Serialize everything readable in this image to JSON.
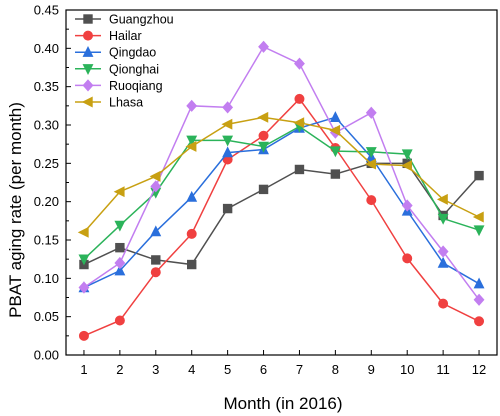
{
  "chart_data": {
    "type": "line",
    "xlabel": "Month (in 2016)",
    "ylabel": "PBAT aging rate (per month)",
    "x": [
      1,
      2,
      3,
      4,
      5,
      6,
      7,
      8,
      9,
      10,
      11,
      12
    ],
    "xlim": [
      0.5,
      12.5
    ],
    "ylim": [
      0.0,
      0.45
    ],
    "xticks": [
      "1",
      "2",
      "3",
      "4",
      "5",
      "6",
      "7",
      "8",
      "9",
      "10",
      "11",
      "12"
    ],
    "yticks": [
      "0.00",
      "0.05",
      "0.10",
      "0.15",
      "0.20",
      "0.25",
      "0.30",
      "0.35",
      "0.40",
      "0.45"
    ],
    "grid": false,
    "legend_position": "top-left",
    "series": [
      {
        "name": "Guangzhou",
        "color": "#505050",
        "marker": "square",
        "values": [
          0.118,
          0.14,
          0.124,
          0.118,
          0.191,
          0.216,
          0.242,
          0.236,
          0.25,
          0.25,
          0.182,
          0.234
        ]
      },
      {
        "name": "Hailar",
        "color": "#f04040",
        "marker": "circle",
        "values": [
          0.025,
          0.045,
          0.108,
          0.158,
          0.255,
          0.286,
          0.334,
          0.27,
          0.202,
          0.126,
          0.067,
          0.044
        ]
      },
      {
        "name": "Qingdao",
        "color": "#2a6fdc",
        "marker": "triangle-up",
        "values": [
          0.088,
          0.11,
          0.161,
          0.206,
          0.264,
          0.268,
          0.296,
          0.31,
          0.258,
          0.188,
          0.12,
          0.093
        ]
      },
      {
        "name": "Qionghai",
        "color": "#2bb35a",
        "marker": "triangle-down",
        "values": [
          0.125,
          0.169,
          0.212,
          0.28,
          0.28,
          0.272,
          0.298,
          0.266,
          0.265,
          0.262,
          0.178,
          0.163
        ]
      },
      {
        "name": "Ruoqiang",
        "color": "#c27ef0",
        "marker": "diamond",
        "values": [
          0.088,
          0.12,
          0.22,
          0.325,
          0.323,
          0.402,
          0.38,
          0.29,
          0.316,
          0.195,
          0.135,
          0.072
        ]
      },
      {
        "name": "Lhasa",
        "color": "#c8a012",
        "marker": "triangle-left",
        "values": [
          0.16,
          0.213,
          0.233,
          0.272,
          0.301,
          0.31,
          0.303,
          0.293,
          0.249,
          0.247,
          0.203,
          0.18
        ]
      }
    ]
  }
}
